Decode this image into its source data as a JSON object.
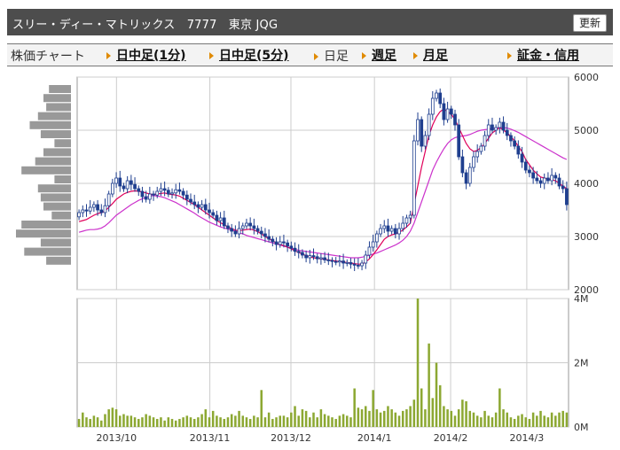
{
  "header": {
    "title": "スリー・ディー・マトリックス　7777　東京 JQG",
    "refresh_label": "更新"
  },
  "nav": {
    "chart_label": "株価チャート",
    "tabs": [
      {
        "label": "日中足(1分)",
        "active": false
      },
      {
        "label": "日中足(5分)",
        "active": false
      },
      {
        "label": "日足",
        "active": true
      },
      {
        "label": "週足",
        "active": false
      },
      {
        "label": "月足",
        "active": false
      },
      {
        "label": "証金・信用",
        "active": false
      }
    ]
  },
  "colors": {
    "candle": "#1f3f8f",
    "ma_short": "#e0005a",
    "ma_long": "#cc33cc",
    "volume": "#8ca832",
    "volume_profile": "#999999",
    "grid": "#cccccc"
  },
  "chart_data": [
    {
      "type": "candlestick",
      "title": "",
      "y_ticks": [
        "6000",
        "5000",
        "4000",
        "3000",
        "2000"
      ],
      "ylim": [
        2000,
        6000
      ],
      "x_ticks": [
        "2013/10",
        "2013/11",
        "2013/12",
        "2014/1",
        "2014/2",
        "2014/3"
      ],
      "grid": true,
      "close": [
        3450,
        3500,
        3480,
        3550,
        3600,
        3500,
        3450,
        3580,
        3800,
        4000,
        4100,
        3950,
        3900,
        4050,
        3980,
        3900,
        3850,
        3750,
        3700,
        3800,
        3780,
        3850,
        3900,
        3870,
        3800,
        3820,
        3880,
        3850,
        3780,
        3700,
        3650,
        3600,
        3550,
        3600,
        3500,
        3450,
        3400,
        3300,
        3350,
        3200,
        3150,
        3100,
        3050,
        3150,
        3200,
        3250,
        3200,
        3150,
        3100,
        3050,
        3000,
        2950,
        2900,
        2850,
        2900,
        2880,
        2820,
        2780,
        2720,
        2700,
        2650,
        2600,
        2640,
        2620,
        2580,
        2600,
        2560,
        2550,
        2530,
        2520,
        2540,
        2500,
        2510,
        2480,
        2460,
        2450,
        2500,
        2650,
        2800,
        2900,
        3050,
        3150,
        3200,
        3100,
        3150,
        3050,
        3150,
        3250,
        3350,
        3400,
        4800,
        5200,
        4700,
        4900,
        5300,
        5600,
        5700,
        5500,
        5200,
        5400,
        5300,
        5100,
        4500,
        4200,
        4000,
        4300,
        4500,
        4600,
        4700,
        4900,
        5100,
        5000,
        5050,
        5150,
        5000,
        4900,
        4800,
        4700,
        4550,
        4400,
        4250,
        4200,
        4100,
        4050,
        4000,
        4100,
        4050,
        4150,
        4100,
        3950,
        3900,
        3600
      ],
      "ma_short": [
        3280,
        3300,
        3320,
        3360,
        3400,
        3430,
        3450,
        3480,
        3550,
        3620,
        3700,
        3750,
        3800,
        3830,
        3850,
        3860,
        3850,
        3840,
        3820,
        3800,
        3790,
        3800,
        3810,
        3820,
        3800,
        3790,
        3780,
        3760,
        3720,
        3680,
        3640,
        3600,
        3550,
        3500,
        3450,
        3400,
        3350,
        3300,
        3260,
        3220,
        3180,
        3150,
        3120,
        3110,
        3120,
        3130,
        3140,
        3120,
        3090,
        3050,
        3000,
        2960,
        2920,
        2880,
        2850,
        2830,
        2800,
        2770,
        2730,
        2700,
        2670,
        2640,
        2620,
        2600,
        2590,
        2580,
        2570,
        2560,
        2550,
        2540,
        2530,
        2520,
        2510,
        2500,
        2490,
        2480,
        2480,
        2520,
        2580,
        2660,
        2750,
        2850,
        2950,
        3000,
        3030,
        3050,
        3080,
        3120,
        3180,
        3250,
        3600,
        3950,
        4300,
        4600,
        4900,
        5100,
        5250,
        5350,
        5400,
        5350,
        5300,
        5200,
        5050,
        4900,
        4750,
        4650,
        4600,
        4620,
        4680,
        4750,
        4850,
        4950,
        5000,
        5050,
        5000,
        4950,
        4880,
        4800,
        4700,
        4600,
        4450,
        4350,
        4250,
        4180,
        4120,
        4100,
        4080,
        4070,
        4050,
        4000,
        3950,
        3900
      ],
      "ma_long": [
        3080,
        3100,
        3120,
        3130,
        3130,
        3140,
        3160,
        3200,
        3260,
        3330,
        3400,
        3450,
        3500,
        3550,
        3600,
        3640,
        3680,
        3710,
        3740,
        3760,
        3770,
        3760,
        3750,
        3730,
        3700,
        3670,
        3640,
        3600,
        3560,
        3520,
        3480,
        3440,
        3390,
        3350,
        3310,
        3270,
        3240,
        3210,
        3180,
        3160,
        3140,
        3120,
        3100,
        3070,
        3050,
        3020,
        3000,
        2980,
        2960,
        2940,
        2920,
        2900,
        2880,
        2860,
        2840,
        2820,
        2800,
        2780,
        2760,
        2740,
        2730,
        2720,
        2710,
        2700,
        2690,
        2680,
        2670,
        2660,
        2650,
        2640,
        2630,
        2620,
        2610,
        2600,
        2600,
        2600,
        2610,
        2630,
        2650,
        2670,
        2690,
        2720,
        2750,
        2780,
        2810,
        2840,
        2880,
        2930,
        3000,
        3100,
        3250,
        3450,
        3650,
        3850,
        4050,
        4250,
        4400,
        4530,
        4650,
        4750,
        4820,
        4860,
        4880,
        4890,
        4900,
        4920,
        4950,
        4980,
        5000,
        5010,
        5020,
        5030,
        5040,
        5050,
        5050,
        5040,
        5020,
        4990,
        4960,
        4920,
        4880,
        4840,
        4800,
        4760,
        4720,
        4680,
        4640,
        4600,
        4560,
        4520,
        4480,
        4450
      ]
    },
    {
      "type": "bar",
      "title": "",
      "y_ticks": [
        "4M",
        "2M",
        "0M"
      ],
      "ylim": [
        0,
        4
      ],
      "x_ticks": [
        "2013/10",
        "2013/11",
        "2013/12",
        "2014/1",
        "2014/2",
        "2014/3"
      ],
      "values": [
        0.25,
        0.45,
        0.3,
        0.25,
        0.35,
        0.3,
        0.2,
        0.4,
        0.55,
        0.6,
        0.55,
        0.35,
        0.4,
        0.35,
        0.35,
        0.3,
        0.25,
        0.3,
        0.4,
        0.35,
        0.3,
        0.25,
        0.3,
        0.2,
        0.3,
        0.25,
        0.2,
        0.25,
        0.3,
        0.35,
        0.3,
        0.25,
        0.3,
        0.4,
        0.55,
        0.3,
        0.5,
        0.35,
        0.3,
        0.25,
        0.3,
        0.4,
        0.35,
        0.5,
        0.35,
        0.3,
        0.25,
        0.35,
        0.3,
        1.15,
        0.3,
        0.45,
        0.25,
        0.3,
        0.35,
        0.35,
        0.3,
        0.45,
        0.65,
        0.35,
        0.55,
        0.5,
        0.3,
        0.45,
        0.3,
        0.55,
        0.4,
        0.35,
        0.3,
        0.25,
        0.35,
        0.4,
        0.35,
        0.3,
        1.2,
        0.6,
        0.55,
        0.65,
        0.5,
        1.15,
        0.55,
        0.45,
        0.5,
        0.65,
        0.55,
        0.45,
        0.35,
        0.5,
        0.55,
        0.65,
        0.85,
        4.0,
        1.2,
        0.55,
        2.6,
        0.9,
        2.0,
        1.3,
        0.65,
        0.55,
        0.5,
        0.35,
        0.55,
        0.85,
        0.8,
        0.5,
        0.45,
        0.35,
        0.3,
        0.5,
        0.35,
        0.3,
        0.45,
        1.2,
        0.55,
        0.45,
        0.3,
        0.25,
        0.35,
        0.4,
        0.3,
        0.25,
        0.45,
        0.35,
        0.5,
        0.35,
        0.3,
        0.45,
        0.35,
        0.45,
        0.5,
        0.45
      ]
    },
    {
      "type": "bar",
      "title": "",
      "values": [
        0.4,
        0.5,
        0.45,
        0.6,
        0.75,
        0.55,
        0.3,
        0.5,
        0.65,
        0.9,
        0.3,
        0.6,
        0.55,
        0.5,
        0.35,
        0.9,
        1.0,
        0.55,
        0.85,
        0.45
      ]
    }
  ]
}
